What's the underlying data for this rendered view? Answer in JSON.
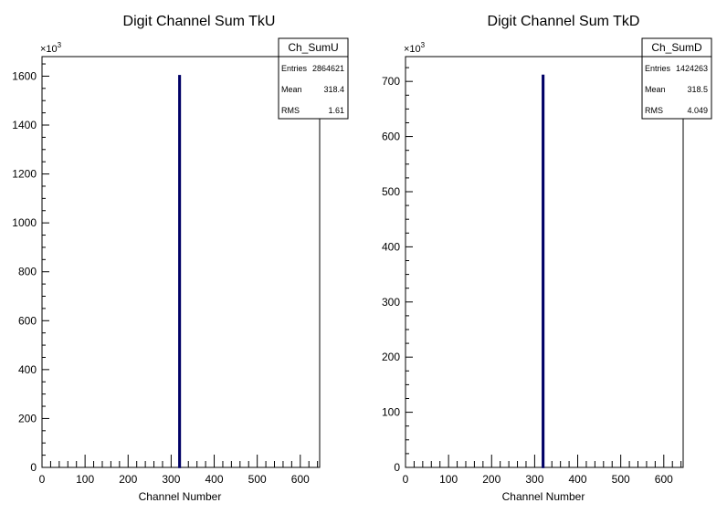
{
  "chart_data": [
    {
      "type": "bar",
      "title": "Digit Channel Sum TkU",
      "xlabel": "Channel Number",
      "ylabel": "",
      "y_multiplier": "×10",
      "y_multiplier_exp": "3",
      "xlim": [
        0,
        645
      ],
      "ylim": [
        0,
        1680
      ],
      "xticks": [
        0,
        100,
        200,
        300,
        400,
        500,
        600
      ],
      "yticks": [
        0,
        200,
        400,
        600,
        800,
        1000,
        1200,
        1400,
        1600
      ],
      "series": [
        {
          "x": [
            318
          ],
          "values": [
            1602
          ]
        }
      ],
      "stats": {
        "name": "Ch_SumU",
        "rows": [
          {
            "label": "Entries",
            "value": "2864621"
          },
          {
            "label": "Mean",
            "value": "318.4"
          },
          {
            "label": "RMS",
            "value": "1.61"
          }
        ]
      },
      "colors": {
        "bar": "#000066"
      }
    },
    {
      "type": "bar",
      "title": "Digit Channel Sum TkD",
      "xlabel": "Channel Number",
      "ylabel": "",
      "y_multiplier": "×10",
      "y_multiplier_exp": "3",
      "xlim": [
        0,
        645
      ],
      "ylim": [
        0,
        745
      ],
      "xticks": [
        0,
        100,
        200,
        300,
        400,
        500,
        600
      ],
      "yticks": [
        0,
        100,
        200,
        300,
        400,
        500,
        600,
        700
      ],
      "series": [
        {
          "x": [
            318
          ],
          "values": [
            711
          ]
        }
      ],
      "stats": {
        "name": "Ch_SumD",
        "rows": [
          {
            "label": "Entries",
            "value": "1424263"
          },
          {
            "label": "Mean",
            "value": "318.5"
          },
          {
            "label": "RMS",
            "value": "4.049"
          }
        ]
      },
      "colors": {
        "bar": "#000066"
      }
    }
  ]
}
